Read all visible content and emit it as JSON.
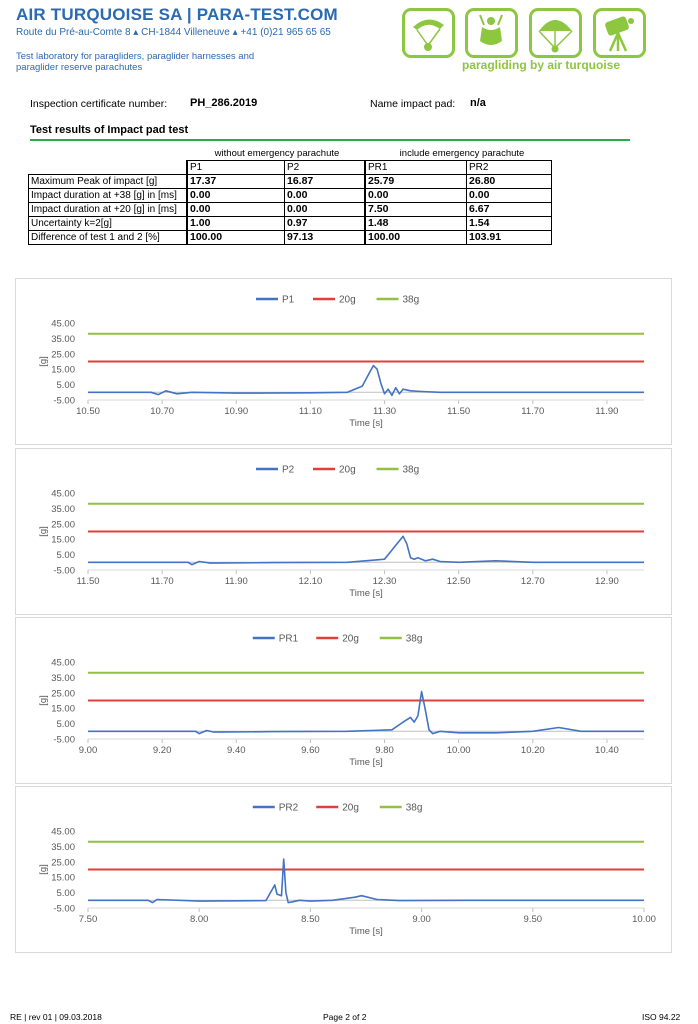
{
  "header": {
    "company": "AIR TURQUOISE SA | PARA-TEST.COM",
    "address_parts": [
      "Route du Pré-au-Comte 8",
      "CH-1844 Villeneuve",
      "+41 (0)21 965 65 65"
    ],
    "description": "Test laboratory for paragliders, paraglider harnesses and paraglider reserve parachutes",
    "tagline": "paragliding by air turquoise",
    "logo_icons": [
      "paraglider-icon",
      "harness-icon",
      "reserve-parachute-icon",
      "test-equipment-icon"
    ],
    "brand_color": "#2a6ab0",
    "accent_color": "#8dc63f"
  },
  "info": {
    "certificate_label": "Inspection certificate number:",
    "certificate_value": "PH_286.2019",
    "pad_label": "Name impact pad:",
    "pad_value": "n/a"
  },
  "section_title": "Test results of Impact pad test",
  "table": {
    "group_without": "without emergency parachute",
    "group_with": "include emergency parachute",
    "columns": [
      "P1",
      "P2",
      "PR1",
      "PR2"
    ],
    "rows": [
      {
        "label": "Maximum Peak of impact [g]",
        "values": [
          "17.37",
          "16.87",
          "25.79",
          "26.80"
        ]
      },
      {
        "label": "Impact duration at +38 [g] in [ms]",
        "values": [
          "0.00",
          "0.00",
          "0.00",
          "0.00"
        ]
      },
      {
        "label": "Impact duration at +20 [g] in [ms]",
        "values": [
          "0.00",
          "0.00",
          "7.50",
          "6.67"
        ]
      },
      {
        "label": "Uncertainty k=2[g]",
        "values": [
          "1.00",
          "0.97",
          "1.48",
          "1.54"
        ]
      },
      {
        "label": "Difference of test 1 and 2 [%]",
        "values": [
          "100.00",
          "97.13",
          "100.00",
          "103.91"
        ]
      }
    ]
  },
  "chart_data": [
    {
      "type": "line",
      "xlabel": "Time [s]",
      "ylabel": "[g]",
      "xlim": [
        10.5,
        12.0
      ],
      "ylim": [
        -5,
        45
      ],
      "xticks": [
        "10.50",
        "10.70",
        "10.90",
        "11.10",
        "11.30",
        "11.50",
        "11.70",
        "11.90"
      ],
      "yticks": [
        "-5.00",
        "5.00",
        "15.00",
        "25.00",
        "35.00",
        "45.00"
      ],
      "legend_position": "top",
      "series": [
        {
          "name": "P1",
          "color": "#4472c4",
          "x": [
            10.5,
            10.67,
            10.69,
            10.71,
            10.74,
            10.78,
            10.9,
            11.1,
            11.2,
            11.24,
            11.26,
            11.27,
            11.28,
            11.29,
            11.3,
            11.31,
            11.32,
            11.33,
            11.34,
            11.35,
            11.37,
            11.4,
            11.45,
            11.6,
            12.0
          ],
          "y": [
            0,
            0,
            -1.5,
            1,
            -1,
            0,
            -0.5,
            -0.3,
            0,
            4,
            13,
            17.37,
            15,
            6,
            -1,
            2,
            -2,
            3,
            -1,
            2,
            1,
            0.5,
            0,
            0,
            0
          ]
        },
        {
          "name": "20g",
          "color": "#e0403a",
          "x": [
            10.5,
            12.0
          ],
          "y": [
            20,
            20
          ]
        },
        {
          "name": "38g",
          "color": "#93c044",
          "x": [
            10.5,
            12.0
          ],
          "y": [
            38,
            38
          ]
        }
      ]
    },
    {
      "type": "line",
      "xlabel": "Time [s]",
      "ylabel": "[g]",
      "xlim": [
        11.5,
        13.0
      ],
      "ylim": [
        -5,
        45
      ],
      "xticks": [
        "11.50",
        "11.70",
        "11.90",
        "12.10",
        "12.30",
        "12.50",
        "12.70",
        "12.90"
      ],
      "yticks": [
        "-5.00",
        "5.00",
        "15.00",
        "25.00",
        "35.00",
        "45.00"
      ],
      "legend_position": "top",
      "series": [
        {
          "name": "P2",
          "color": "#4472c4",
          "x": [
            11.5,
            11.77,
            11.78,
            11.8,
            11.83,
            12.0,
            12.2,
            12.3,
            12.33,
            12.35,
            12.36,
            12.37,
            12.38,
            12.39,
            12.41,
            12.43,
            12.45,
            12.5,
            12.6,
            12.7,
            13.0
          ],
          "y": [
            0,
            0,
            -1.5,
            0.5,
            -0.5,
            -0.2,
            0,
            2,
            11,
            16.87,
            12,
            3,
            2,
            3,
            1,
            2,
            0.5,
            0,
            1,
            0,
            0
          ]
        },
        {
          "name": "20g",
          "color": "#e0403a",
          "x": [
            11.5,
            13.0
          ],
          "y": [
            20,
            20
          ]
        },
        {
          "name": "38g",
          "color": "#93c044",
          "x": [
            11.5,
            13.0
          ],
          "y": [
            38,
            38
          ]
        }
      ]
    },
    {
      "type": "line",
      "xlabel": "Time [s]",
      "ylabel": "[g]",
      "xlim": [
        9.0,
        10.5
      ],
      "ylim": [
        -5,
        45
      ],
      "xticks": [
        "9.00",
        "9.20",
        "9.40",
        "9.60",
        "9.80",
        "10.00",
        "10.20",
        "10.40"
      ],
      "yticks": [
        "-5.00",
        "5.00",
        "15.00",
        "25.00",
        "35.00",
        "45.00"
      ],
      "legend_position": "top",
      "series": [
        {
          "name": "PR1",
          "color": "#4472c4",
          "x": [
            9.0,
            9.29,
            9.3,
            9.32,
            9.34,
            9.5,
            9.7,
            9.82,
            9.85,
            9.87,
            9.88,
            9.89,
            9.9,
            9.91,
            9.92,
            9.93,
            9.95,
            10.0,
            10.1,
            10.2,
            10.27,
            10.33,
            10.4,
            10.5
          ],
          "y": [
            0,
            0,
            -1.5,
            0.5,
            -0.5,
            -0.2,
            0,
            1,
            6,
            9,
            6,
            10,
            25.79,
            14,
            1,
            -1.5,
            0,
            -1,
            -1,
            0,
            2.5,
            0,
            0,
            0
          ]
        },
        {
          "name": "20g",
          "color": "#e0403a",
          "x": [
            9.0,
            10.5
          ],
          "y": [
            20,
            20
          ]
        },
        {
          "name": "38g",
          "color": "#93c044",
          "x": [
            9.0,
            10.5
          ],
          "y": [
            38,
            38
          ]
        }
      ]
    },
    {
      "type": "line",
      "xlabel": "Time [s]",
      "ylabel": "[g]",
      "xlim": [
        7.5,
        10.0
      ],
      "ylim": [
        -5,
        45
      ],
      "xticks": [
        "7.50",
        "8.00",
        "8.50",
        "9.00",
        "9.50",
        "10.00"
      ],
      "yticks": [
        "-5.00",
        "5.00",
        "15.00",
        "25.00",
        "35.00",
        "45.00"
      ],
      "legend_position": "top",
      "series": [
        {
          "name": "PR2",
          "color": "#4472c4",
          "x": [
            7.5,
            7.77,
            7.79,
            7.81,
            8.0,
            8.3,
            8.34,
            8.35,
            8.37,
            8.38,
            8.39,
            8.4,
            8.42,
            8.45,
            8.5,
            8.6,
            8.7,
            8.73,
            8.8,
            8.9,
            9.2,
            9.5,
            10.0
          ],
          "y": [
            0,
            0,
            -1.5,
            0.5,
            -0.5,
            -0.2,
            10,
            4,
            3,
            26.8,
            5,
            -1.5,
            -1,
            0,
            -0.5,
            0,
            2,
            3,
            0.5,
            -0.2,
            0,
            0,
            0
          ]
        },
        {
          "name": "20g",
          "color": "#e0403a",
          "x": [
            7.5,
            10.0
          ],
          "y": [
            20,
            20
          ]
        },
        {
          "name": "38g",
          "color": "#93c044",
          "x": [
            7.5,
            10.0
          ],
          "y": [
            38,
            38
          ]
        }
      ]
    }
  ],
  "footer": {
    "left": "RE | rev 01 | 09.03.2018",
    "center": "Page 2 of 2",
    "right": "ISO 94.22"
  }
}
